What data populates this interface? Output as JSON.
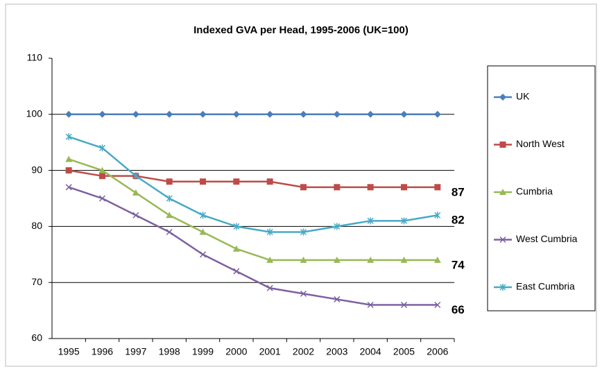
{
  "chart_data": {
    "type": "line",
    "title": "Indexed GVA per Head, 1995-2006 (UK=100)",
    "categories": [
      "1995",
      "1996",
      "1997",
      "1998",
      "1999",
      "2000",
      "2001",
      "2002",
      "2003",
      "2004",
      "2005",
      "2006"
    ],
    "ylim": [
      60,
      110
    ],
    "yticks": [
      60,
      70,
      80,
      90,
      100,
      110
    ],
    "grid": true,
    "legend": "right",
    "series": [
      {
        "name": "UK",
        "color": "#4a7ebb",
        "marker": "diamond",
        "values": [
          100,
          100,
          100,
          100,
          100,
          100,
          100,
          100,
          100,
          100,
          100,
          100
        ]
      },
      {
        "name": "North West",
        "color": "#be4b48",
        "marker": "square",
        "values": [
          90,
          89,
          89,
          88,
          88,
          88,
          88,
          87,
          87,
          87,
          87,
          87
        ]
      },
      {
        "name": "Cumbria",
        "color": "#98b954",
        "marker": "triangle",
        "values": [
          92,
          90,
          86,
          82,
          79,
          76,
          74,
          74,
          74,
          74,
          74,
          74
        ]
      },
      {
        "name": "West Cumbria",
        "color": "#7d60a0",
        "marker": "x",
        "values": [
          87,
          85,
          82,
          79,
          75,
          72,
          69,
          68,
          67,
          66,
          66,
          66
        ]
      },
      {
        "name": "East Cumbria",
        "color": "#46aac5",
        "marker": "star",
        "values": [
          96,
          94,
          89,
          85,
          82,
          80,
          79,
          79,
          80,
          81,
          81,
          82
        ]
      }
    ]
  }
}
